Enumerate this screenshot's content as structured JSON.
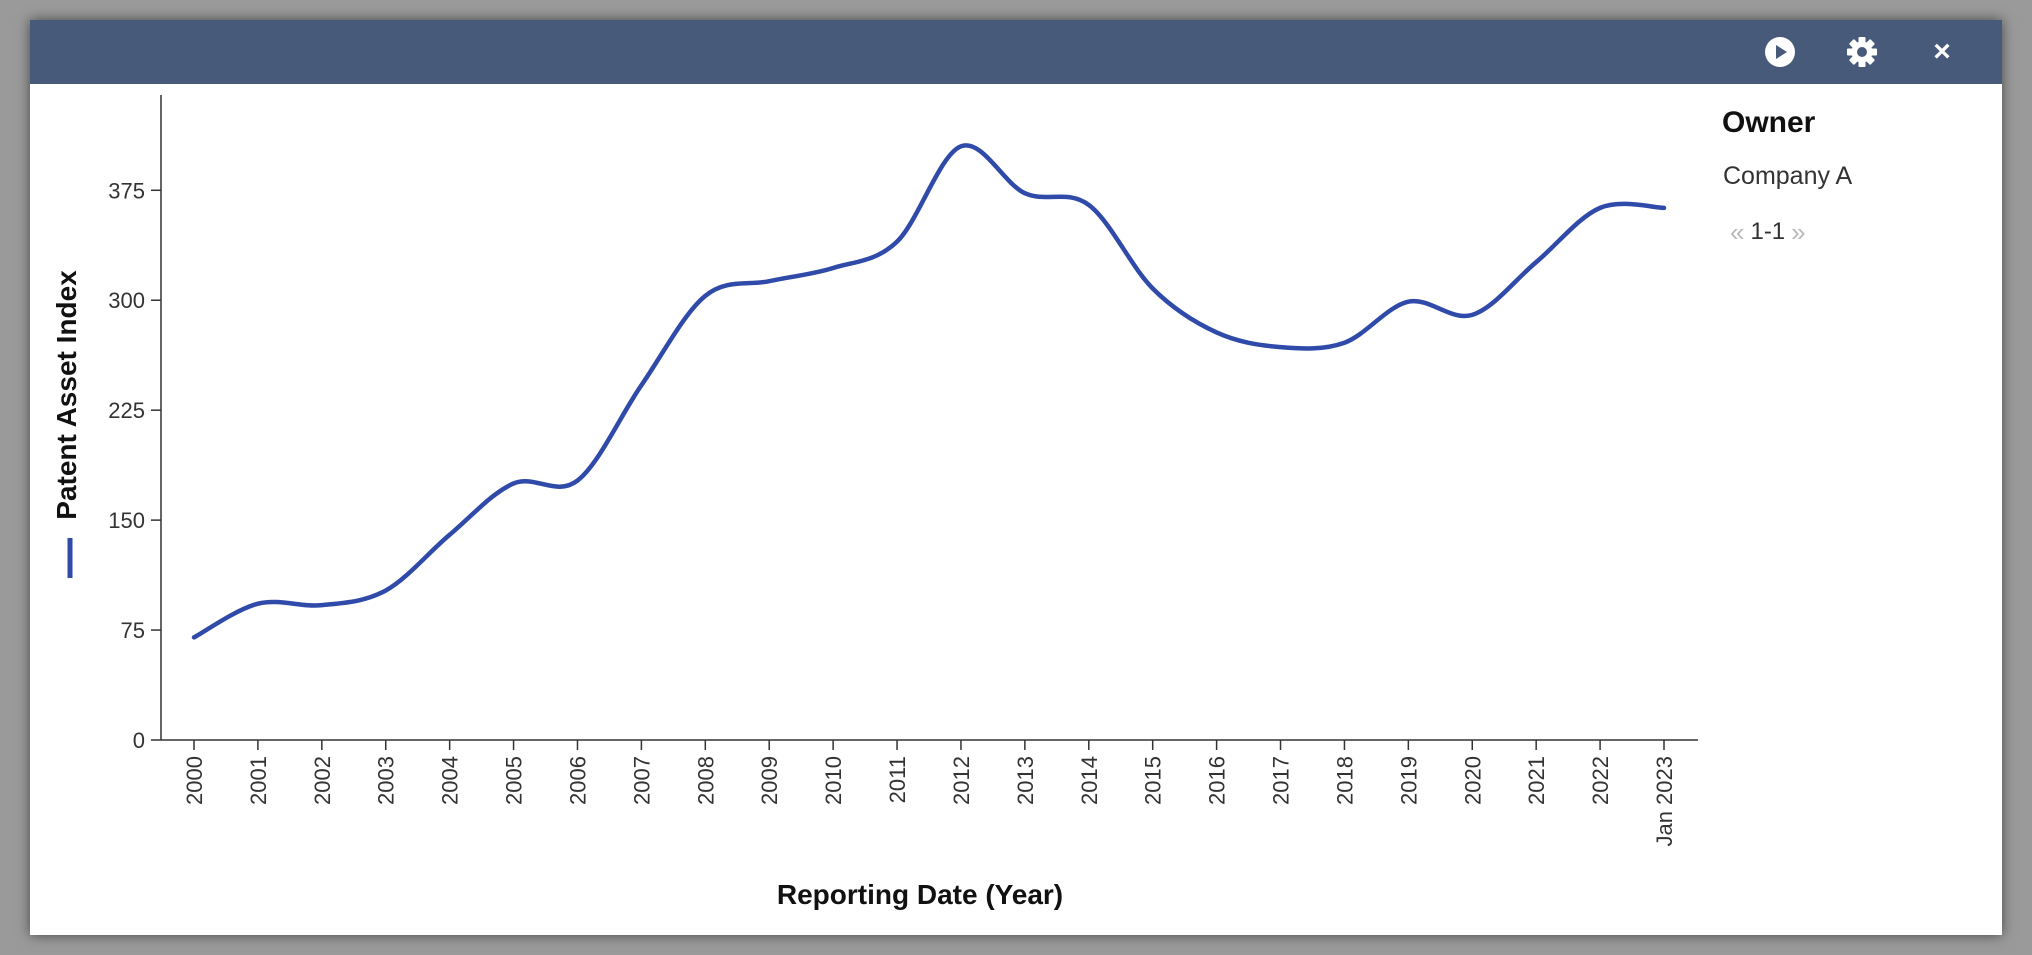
{
  "toolbar": {
    "play_icon": "play-icon",
    "settings_icon": "gear-icon",
    "close_icon": "close-icon",
    "close_label": "×"
  },
  "legend": {
    "title": "Owner",
    "items": [
      "Company A"
    ],
    "pager": {
      "prev": "«",
      "label": "1-1",
      "next": "»"
    }
  },
  "chart_data": {
    "type": "line",
    "xlabel": "Reporting Date (Year)",
    "ylabel": "Patent Asset Index",
    "ylim": [
      0,
      440
    ],
    "yticks": [
      0,
      75,
      150,
      225,
      300,
      375
    ],
    "categories": [
      "2000",
      "2001",
      "2002",
      "2003",
      "2004",
      "2005",
      "2006",
      "2007",
      "2008",
      "2009",
      "2010",
      "2011",
      "2012",
      "2013",
      "2014",
      "2015",
      "2016",
      "2017",
      "2018",
      "2019",
      "2020",
      "2021",
      "2022",
      "Jan 2023"
    ],
    "series": [
      {
        "name": "Company A",
        "color": "#2f4aa8",
        "values": [
          70,
          93,
          92,
          102,
          140,
          175,
          177,
          242,
          303,
          313,
          322,
          340,
          405,
          373,
          365,
          308,
          278,
          268,
          271,
          299,
          290,
          326,
          363,
          363
        ]
      }
    ],
    "grid": false,
    "legend_position": "right"
  }
}
